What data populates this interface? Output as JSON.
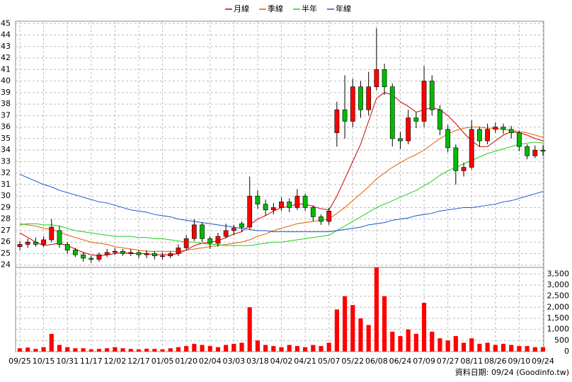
{
  "chart_data": {
    "type": "candlestick",
    "categories": [
      "09/25",
      null,
      null,
      "10/15",
      null,
      null,
      "10/31",
      null,
      null,
      "11/17",
      null,
      null,
      "12/02",
      null,
      null,
      "12/17",
      null,
      null,
      "01/05",
      null,
      null,
      "01/20",
      null,
      null,
      "02/04",
      null,
      null,
      "03/03",
      null,
      null,
      "03/18",
      null,
      null,
      "04/02",
      null,
      null,
      "04/21",
      null,
      null,
      "05/07",
      null,
      null,
      "05/22",
      null,
      null,
      "06/08",
      null,
      null,
      "06/24",
      null,
      null,
      "07/09",
      null,
      null,
      "07/27",
      null,
      null,
      "08/11",
      null,
      null,
      "08/26",
      null,
      null,
      "09/10",
      null,
      null,
      "09/24"
    ],
    "open": [
      25.6,
      25.8,
      26.0,
      25.8,
      26.2,
      27.0,
      25.8,
      25.3,
      24.9,
      24.6,
      24.5,
      24.9,
      25.1,
      25.2,
      25.0,
      25.1,
      24.9,
      25.0,
      24.8,
      24.8,
      25.0,
      25.5,
      26.3,
      27.5,
      26.3,
      25.9,
      26.5,
      27.0,
      27.6,
      27.3,
      30.0,
      29.3,
      28.8,
      29.0,
      29.5,
      29.0,
      30.0,
      29.0,
      28.2,
      27.8,
      35.5,
      37.5,
      36.5,
      39.5,
      37.5,
      39.5,
      41.0,
      39.5,
      35.0,
      34.8,
      36.8,
      36.5,
      40.0,
      37.5,
      35.8,
      34.2,
      32.2,
      32.5,
      35.8,
      34.8,
      35.8,
      36.0,
      35.8,
      35.5,
      34.3,
      33.5,
      34.0
    ],
    "high": [
      26.1,
      26.3,
      26.4,
      26.5,
      28.0,
      27.4,
      26.0,
      25.5,
      25.1,
      24.8,
      25.1,
      25.4,
      25.5,
      25.4,
      25.4,
      25.3,
      25.3,
      25.2,
      25.1,
      25.2,
      25.8,
      26.6,
      28.0,
      27.7,
      26.5,
      26.8,
      27.6,
      27.5,
      27.8,
      31.7,
      30.5,
      29.7,
      29.4,
      29.9,
      29.8,
      30.6,
      30.2,
      29.2,
      28.4,
      29.0,
      38.2,
      40.5,
      40.2,
      40.0,
      40.8,
      44.6,
      41.5,
      39.8,
      35.6,
      37.5,
      37.3,
      41.3,
      40.5,
      37.9,
      36.2,
      34.5,
      32.9,
      36.6,
      36.0,
      36.3,
      36.4,
      36.3,
      36.1,
      35.7,
      34.5,
      34.4,
      34.4
    ],
    "low": [
      25.3,
      25.5,
      25.6,
      25.6,
      26.0,
      25.5,
      25.0,
      24.7,
      24.3,
      24.2,
      24.3,
      24.7,
      24.9,
      24.8,
      24.8,
      24.6,
      24.6,
      24.5,
      24.5,
      24.6,
      24.8,
      25.3,
      26.1,
      26.0,
      25.4,
      25.6,
      26.3,
      26.6,
      26.9,
      27.1,
      28.9,
      28.3,
      28.4,
      28.7,
      28.6,
      28.8,
      28.7,
      27.8,
      27.5,
      27.5,
      34.3,
      35.0,
      36.0,
      36.8,
      37.0,
      39.2,
      38.8,
      34.3,
      34.1,
      34.5,
      35.9,
      36.0,
      37.0,
      35.3,
      33.8,
      31.0,
      31.7,
      32.3,
      34.3,
      34.5,
      35.5,
      35.4,
      35.0,
      33.9,
      33.2,
      33.3,
      33.5
    ],
    "close": [
      25.8,
      26.0,
      25.8,
      26.2,
      27.3,
      25.8,
      25.3,
      24.9,
      24.6,
      24.5,
      24.9,
      25.1,
      25.2,
      25.0,
      25.1,
      24.9,
      25.0,
      24.8,
      24.8,
      25.0,
      25.5,
      26.3,
      27.5,
      26.3,
      25.9,
      26.5,
      27.0,
      27.2,
      27.3,
      30.0,
      29.3,
      28.8,
      29.0,
      29.5,
      29.0,
      30.0,
      29.0,
      28.2,
      27.8,
      28.7,
      37.5,
      36.5,
      39.5,
      37.5,
      39.5,
      41.0,
      39.5,
      35.0,
      34.8,
      36.8,
      36.5,
      40.0,
      37.5,
      35.8,
      34.2,
      32.2,
      32.5,
      35.8,
      34.8,
      35.8,
      36.0,
      35.8,
      35.5,
      34.3,
      33.5,
      34.0,
      33.9
    ],
    "up_color": "#ff0000",
    "down_color": "#00bb00",
    "series": [
      {
        "name": "月線",
        "color": "#cc0000",
        "values": [
          26.8,
          26.4,
          26.0,
          25.7,
          25.8,
          25.9,
          25.7,
          25.4,
          25.1,
          24.9,
          24.8,
          24.9,
          25.0,
          25.1,
          25.0,
          25.0,
          25.0,
          24.9,
          24.9,
          24.9,
          25.0,
          25.3,
          25.7,
          25.9,
          26.0,
          26.1,
          26.4,
          26.7,
          26.9,
          27.5,
          28.0,
          28.3,
          28.7,
          29.0,
          29.1,
          29.3,
          29.3,
          29.1,
          28.9,
          28.8,
          30.0,
          31.5,
          33.0,
          34.5,
          36.5,
          38.5,
          39.0,
          38.8,
          38.2,
          37.8,
          37.3,
          37.5,
          37.7,
          37.5,
          37.0,
          36.3,
          35.5,
          34.8,
          34.3,
          34.3,
          34.8,
          35.3,
          35.6,
          35.5,
          35.3,
          35.0,
          34.8
        ]
      },
      {
        "name": "季線",
        "color": "#e06000",
        "values": [
          27.6,
          27.5,
          27.4,
          27.2,
          27.1,
          26.9,
          26.6,
          26.4,
          26.2,
          26.0,
          25.9,
          25.8,
          25.6,
          25.5,
          25.4,
          25.3,
          25.2,
          25.2,
          25.2,
          25.2,
          25.2,
          25.3,
          25.4,
          25.5,
          25.6,
          25.7,
          25.8,
          25.9,
          26.0,
          26.2,
          26.5,
          26.7,
          27.0,
          27.2,
          27.4,
          27.6,
          27.7,
          27.8,
          27.9,
          28.0,
          28.5,
          29.0,
          29.6,
          30.2,
          30.8,
          31.5,
          32.0,
          32.5,
          32.9,
          33.3,
          33.6,
          34.0,
          34.5,
          35.0,
          35.4,
          35.7,
          35.9,
          36.0,
          36.0,
          35.9,
          35.9,
          35.8,
          35.7,
          35.6,
          35.5,
          35.3,
          35.1
        ]
      },
      {
        "name": "半年",
        "color": "#22cc22",
        "values": [
          27.5,
          27.6,
          27.6,
          27.5,
          27.5,
          27.4,
          27.2,
          27.0,
          26.9,
          26.8,
          26.7,
          26.6,
          26.5,
          26.5,
          26.5,
          26.4,
          26.4,
          26.3,
          26.3,
          26.2,
          26.1,
          26.0,
          26.0,
          25.9,
          25.8,
          25.8,
          25.7,
          25.7,
          25.7,
          25.7,
          25.8,
          25.9,
          26.0,
          26.0,
          26.1,
          26.2,
          26.3,
          26.4,
          26.5,
          26.6,
          27.0,
          27.4,
          27.8,
          28.2,
          28.6,
          29.0,
          29.3,
          29.6,
          29.9,
          30.2,
          30.5,
          30.9,
          31.3,
          31.8,
          32.2,
          32.5,
          32.8,
          33.1,
          33.4,
          33.7,
          33.9,
          34.1,
          34.3,
          34.5,
          34.6,
          34.7,
          34.6
        ]
      },
      {
        "name": "年線",
        "color": "#1155cc",
        "values": [
          31.9,
          31.6,
          31.3,
          31.0,
          30.8,
          30.5,
          30.3,
          30.1,
          29.9,
          29.7,
          29.5,
          29.4,
          29.2,
          29.0,
          28.8,
          28.7,
          28.6,
          28.4,
          28.3,
          28.2,
          28.0,
          27.9,
          27.8,
          27.7,
          27.6,
          27.5,
          27.4,
          27.3,
          27.2,
          27.1,
          27.0,
          27.0,
          26.9,
          26.9,
          26.9,
          26.9,
          26.9,
          26.9,
          26.9,
          26.9,
          27.0,
          27.1,
          27.2,
          27.3,
          27.5,
          27.6,
          27.7,
          27.9,
          28.0,
          28.1,
          28.3,
          28.4,
          28.5,
          28.7,
          28.8,
          28.9,
          29.0,
          29.0,
          29.1,
          29.2,
          29.3,
          29.5,
          29.6,
          29.8,
          30.0,
          30.2,
          30.4
        ]
      }
    ],
    "ylim": [
      23.8,
      45.2
    ],
    "yticks": [
      24,
      25,
      26,
      27,
      28,
      29,
      30,
      31,
      32,
      33,
      34,
      35,
      36,
      37,
      38,
      39,
      40,
      41,
      42,
      43,
      44,
      45
    ],
    "grid": true,
    "volume": {
      "color": "#ff0000",
      "values": [
        150,
        180,
        120,
        200,
        800,
        300,
        200,
        150,
        150,
        100,
        120,
        150,
        200,
        150,
        120,
        100,
        130,
        120,
        100,
        150,
        200,
        250,
        350,
        300,
        250,
        200,
        300,
        350,
        400,
        2000,
        500,
        300,
        250,
        200,
        300,
        250,
        200,
        300,
        250,
        400,
        1900,
        2500,
        2100,
        1500,
        1200,
        3800,
        2500,
        900,
        700,
        1000,
        800,
        2200,
        900,
        600,
        500,
        700,
        400,
        600,
        350,
        400,
        300,
        350,
        300,
        250,
        250,
        200,
        200
      ],
      "ylim": [
        0,
        3800
      ],
      "yticks": [
        0,
        500,
        {
          "value": 1000,
          "label": "1,000"
        },
        {
          "value": 1500,
          "label": "1,500"
        },
        {
          "value": 2000,
          "label": "2,000"
        },
        {
          "value": 2500,
          "label": "2,500"
        },
        {
          "value": 3000,
          "label": "3,000"
        },
        {
          "value": 3500,
          "label": "3,500"
        }
      ]
    },
    "footnote": "資料日期: 09/24  (Goodinfo.tw)"
  }
}
